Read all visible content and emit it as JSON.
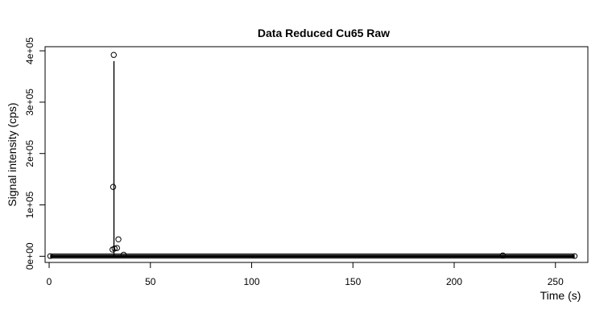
{
  "chart_data": {
    "type": "scatter",
    "title": "Data Reduced Cu65 Raw",
    "xlabel": "Time (s)",
    "ylabel": "Signal intensity (cps)",
    "xlim": [
      -2,
      266
    ],
    "ylim": [
      -12000,
      408000
    ],
    "x_ticks": [
      {
        "value": 0,
        "label": "0"
      },
      {
        "value": 50,
        "label": "50"
      },
      {
        "value": 100,
        "label": "100"
      },
      {
        "value": 150,
        "label": "150"
      },
      {
        "value": 200,
        "label": "200"
      },
      {
        "value": 250,
        "label": "250"
      }
    ],
    "y_ticks": [
      {
        "value": 0,
        "label": "0e+00"
      },
      {
        "value": 100000,
        "label": "1e+05"
      },
      {
        "value": 200000,
        "label": "2e+05"
      },
      {
        "value": 300000,
        "label": "3e+05"
      },
      {
        "value": 400000,
        "label": "4e+05"
      }
    ],
    "baseline": {
      "x_start": 0.5,
      "x_end": 259.5,
      "value": 300
    },
    "series": [
      {
        "name": "Cu65",
        "points": [
          {
            "x": 31.3,
            "y": 13000
          },
          {
            "x": 31.6,
            "y": 135000
          },
          {
            "x": 31.9,
            "y": 392000
          },
          {
            "x": 32.3,
            "y": 15000
          },
          {
            "x": 33.5,
            "y": 16000
          },
          {
            "x": 34.2,
            "y": 33000
          },
          {
            "x": 36.8,
            "y": 3000
          },
          {
            "x": 224.0,
            "y": 1500
          }
        ]
      }
    ],
    "spike_line": {
      "x": 32.0,
      "y_from": 0,
      "y_to": 380000
    },
    "grid": false,
    "legend": "none"
  }
}
